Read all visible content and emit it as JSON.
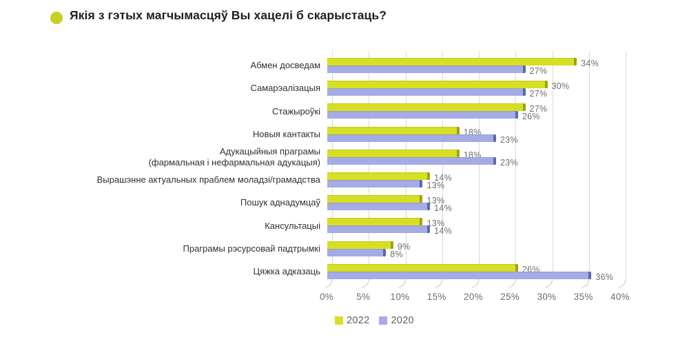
{
  "title": "Якія з гэтых магчымасцяў Вы хацелі б скарыстаць?",
  "colors": {
    "bullet": "#c6d124",
    "series_2022": "#d7df23",
    "series_2022_dark": "#9ca313",
    "series_2020": "#a5abe4",
    "series_2020_dark": "#5e66b2",
    "grid": "#d9d9d9",
    "swoosh": "#cfcfcf",
    "value_label": "#6d6d6d",
    "axis_label": "#6d6d6d",
    "category_label": "#303030"
  },
  "chart_data": {
    "type": "bar",
    "orientation": "horizontal",
    "title": "Якія з гэтых магчымасцяў Вы хацелі б скарыстаць?",
    "categories": [
      "Абмен досведам",
      "Самарэалізацыя",
      "Стажыроўкі",
      "Новыя кантакты",
      "Адукацыйныя праграмы\n(фармальная і нефармальная адукацыя)",
      "Вырашэнне актуальных праблем моладзі/грамадства",
      "Пошук аднадумцаў",
      "Кансультацыі",
      "Праграмы рэсурсовай падтрымкі",
      "Цяжка адказаць"
    ],
    "series": [
      {
        "name": "2022",
        "color": "#d7df23",
        "values": [
          34,
          30,
          27,
          18,
          18,
          14,
          13,
          13,
          9,
          26
        ]
      },
      {
        "name": "2020",
        "color": "#a5abe4",
        "values": [
          27,
          27,
          26,
          23,
          23,
          13,
          14,
          14,
          8,
          36
        ]
      }
    ],
    "value_suffix": "%",
    "xlim": [
      0,
      40
    ],
    "x_tick_step": 5,
    "x_ticks": [
      "0%",
      "5%",
      "10%",
      "15%",
      "20%",
      "25%",
      "30%",
      "35%",
      "40%"
    ],
    "grid": true,
    "legend_position": "bottom"
  }
}
